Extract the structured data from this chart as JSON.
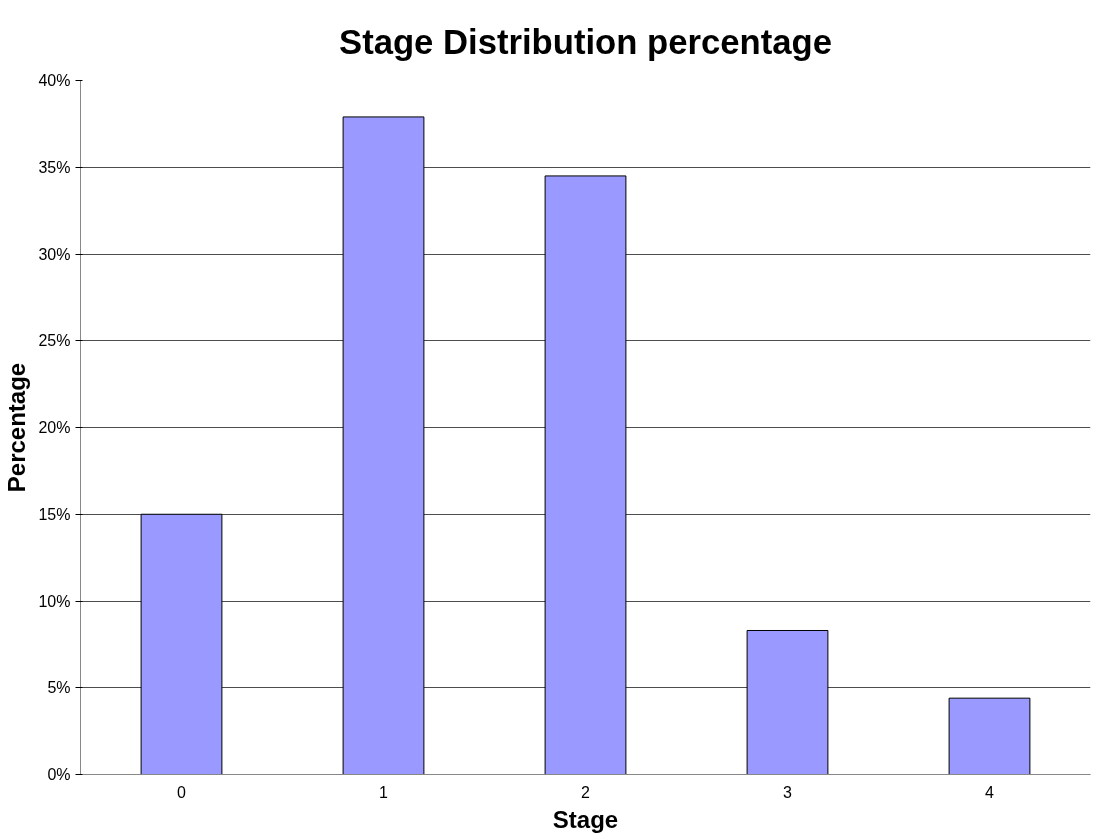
{
  "chart_data": {
    "type": "bar",
    "title": "Stage Distribution percentage",
    "xlabel": "Stage",
    "ylabel": "Percentage",
    "categories": [
      "0",
      "1",
      "2",
      "3",
      "4"
    ],
    "values": [
      15,
      37.9,
      34.5,
      8.3,
      4.4
    ],
    "color": "#9999ff",
    "ylim": [
      0,
      40
    ],
    "yticks": [
      {
        "value": 0,
        "label": "0%"
      },
      {
        "value": 5,
        "label": "5%"
      },
      {
        "value": 10,
        "label": "10%"
      },
      {
        "value": 15,
        "label": "15%"
      },
      {
        "value": 20,
        "label": "20%"
      },
      {
        "value": 25,
        "label": "25%"
      },
      {
        "value": 30,
        "label": "30%"
      },
      {
        "value": 35,
        "label": "35%"
      },
      {
        "value": 40,
        "label": "40%"
      }
    ],
    "grid": "y"
  }
}
